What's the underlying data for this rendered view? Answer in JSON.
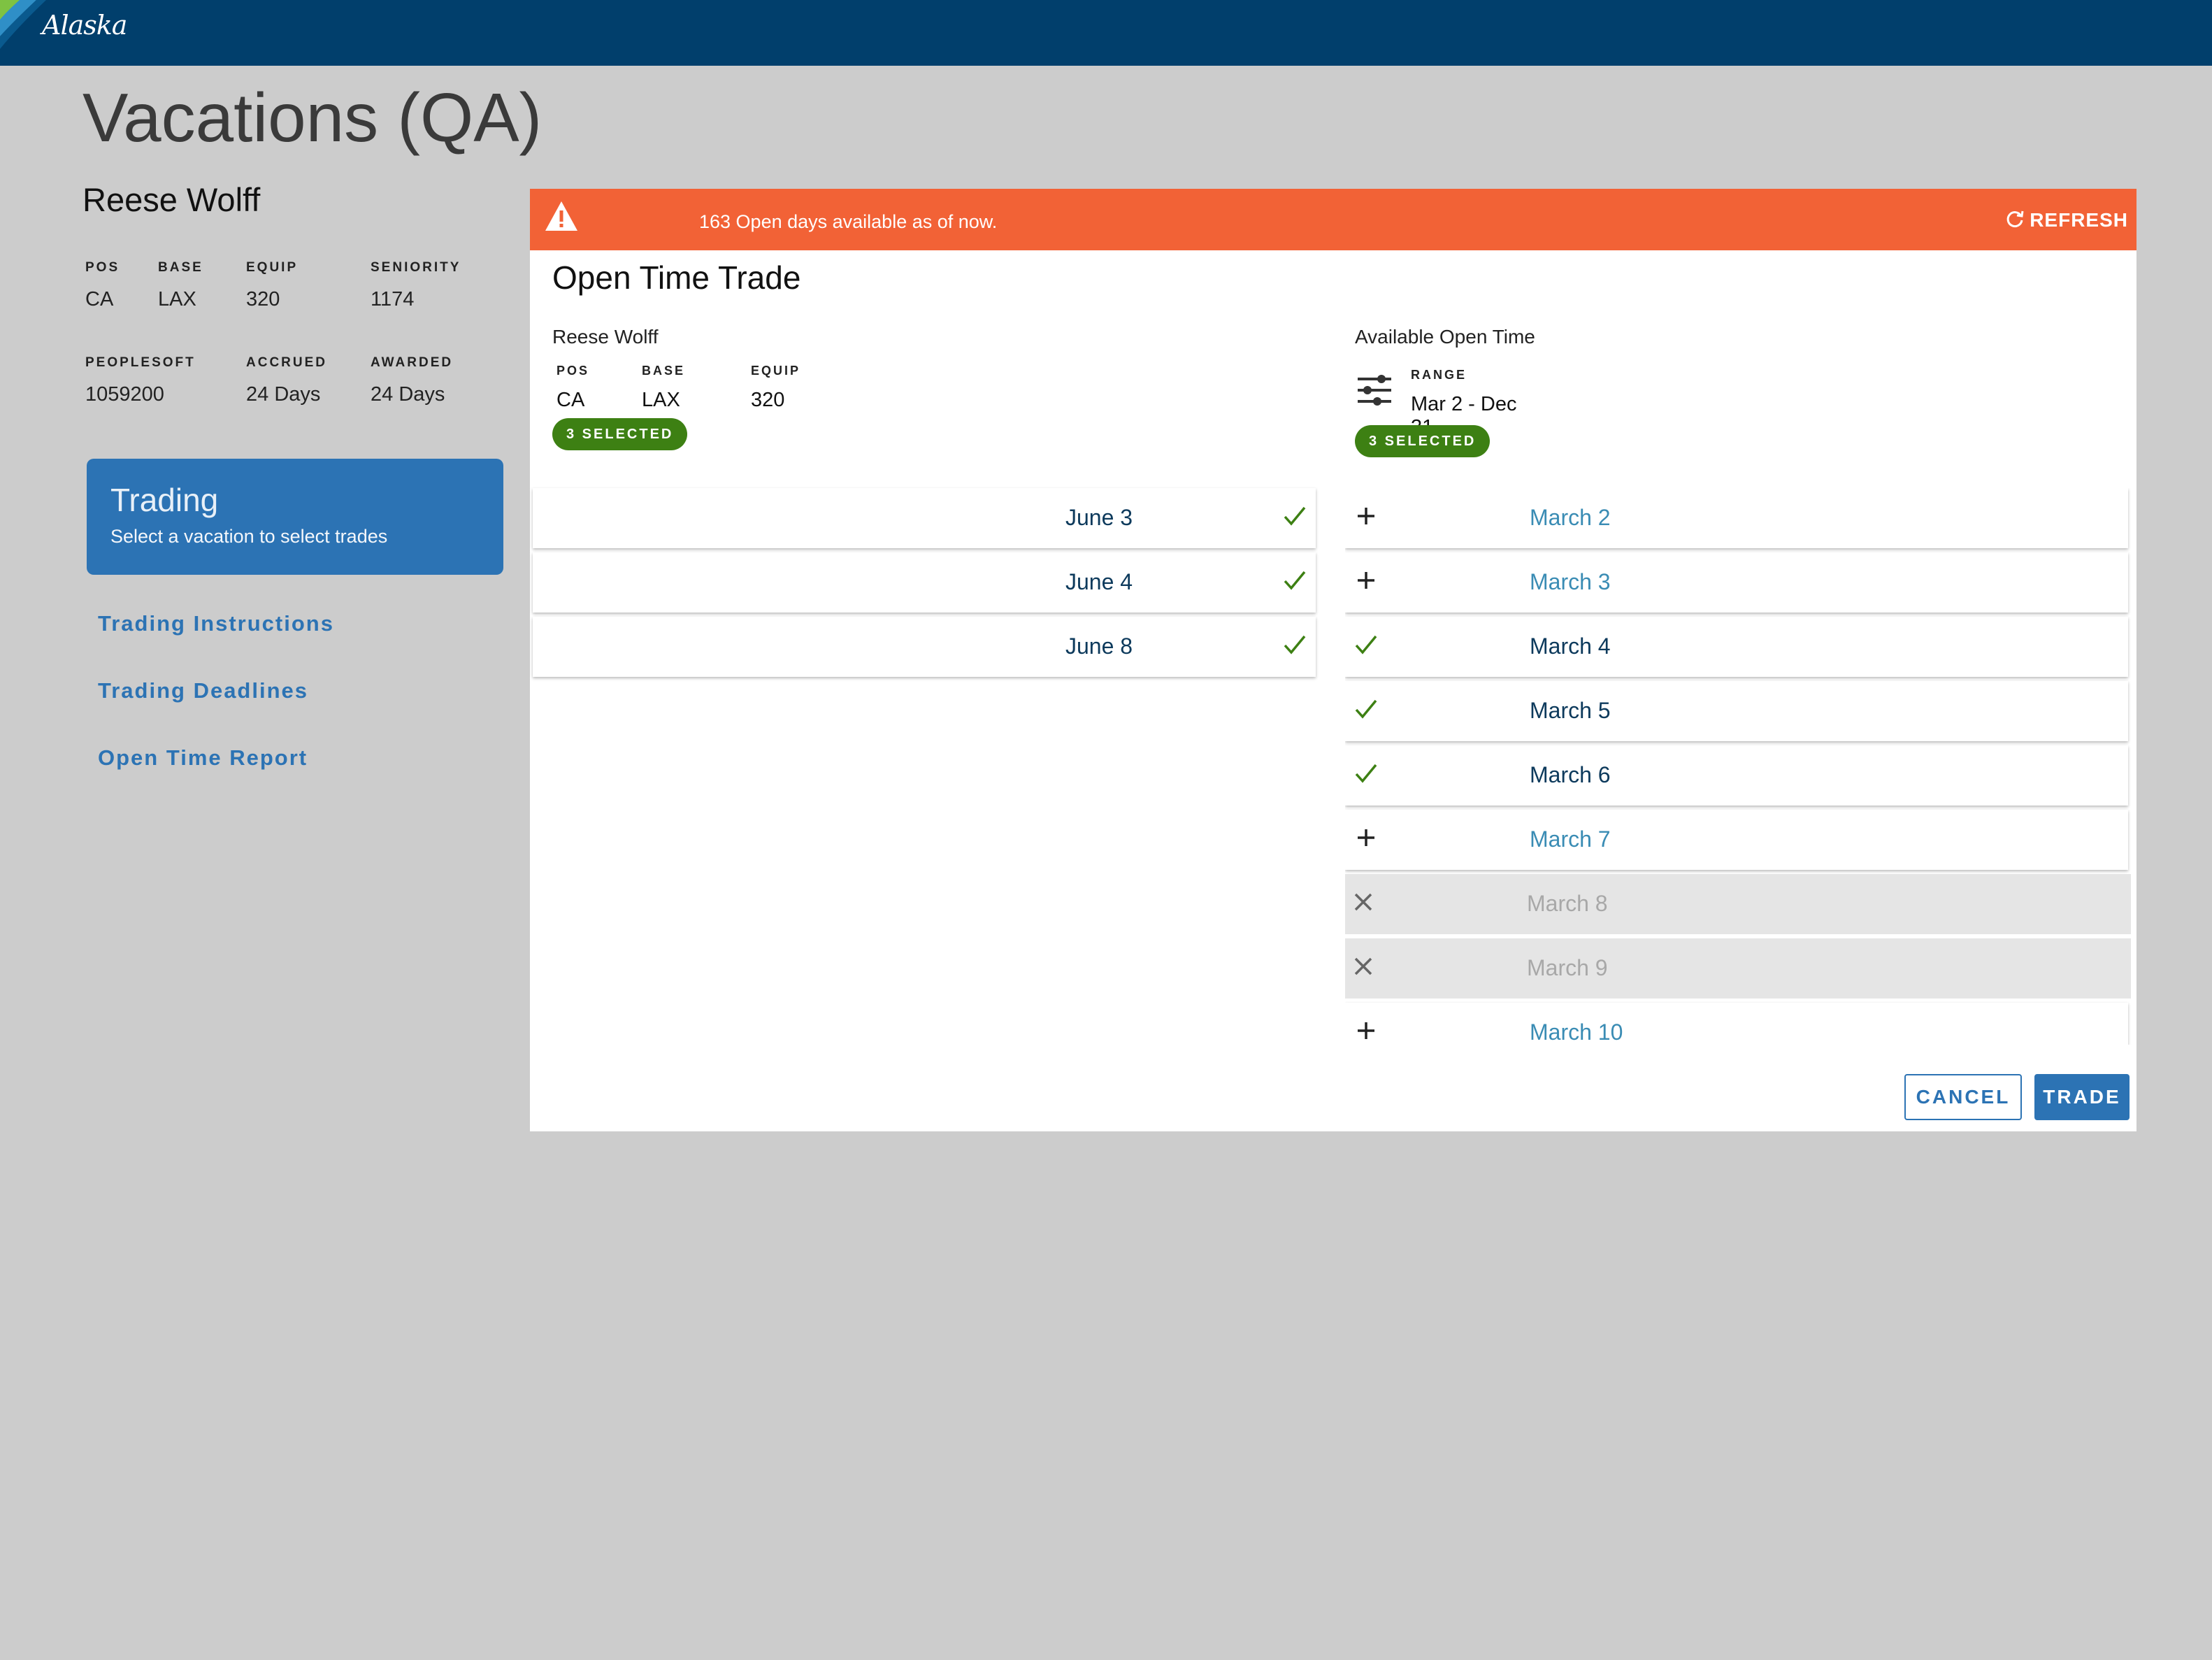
{
  "brand": {
    "logo_text": "Alaska",
    "nav_color": "#013f6c"
  },
  "page": {
    "title": "Vacations (QA)"
  },
  "agent": {
    "name": "Reese Wolff",
    "pos_label": "POS",
    "pos": "CA",
    "base_label": "BASE",
    "base": "LAX",
    "equip_label": "EQUIP",
    "equip": "320",
    "seniority_label": "SENIORITY",
    "seniority": "1174",
    "peoplesoft_label": "PEOPLESOFT",
    "peoplesoft": "1059200",
    "accrued_label": "ACCRUED",
    "accrued": "24 Days",
    "awarded_label": "AWARDED",
    "awarded": "24 Days"
  },
  "sidebar": {
    "card_title": "Trading",
    "card_subtitle": "Select a vacation to select trades",
    "links": [
      "Trading Instructions",
      "Trading Deadlines",
      "Open Time Report"
    ]
  },
  "alert": {
    "message": "163 Open days available as of now.",
    "refresh_label": "REFRESH",
    "color": "#f26236"
  },
  "trade": {
    "title": "Open Time Trade",
    "left": {
      "name": "Reese Wolff",
      "pos_label": "POS",
      "pos": "CA",
      "base_label": "BASE",
      "base": "LAX",
      "equip_label": "EQUIP",
      "equip": "320",
      "badge": "3 SELECTED",
      "days": [
        {
          "date": "June 3",
          "state": "selected"
        },
        {
          "date": "June 4",
          "state": "selected"
        },
        {
          "date": "June 8",
          "state": "selected"
        }
      ]
    },
    "right": {
      "name": "Available Open Time",
      "range_label": "RANGE",
      "range": "Mar 2 - Dec 31",
      "badge": "3 SELECTED",
      "days": [
        {
          "date": "March 2",
          "state": "available"
        },
        {
          "date": "March 3",
          "state": "available"
        },
        {
          "date": "March 4",
          "state": "selected"
        },
        {
          "date": "March 5",
          "state": "selected"
        },
        {
          "date": "March 6",
          "state": "selected"
        },
        {
          "date": "March 7",
          "state": "available"
        },
        {
          "date": "March 8",
          "state": "unavailable"
        },
        {
          "date": "March 9",
          "state": "unavailable"
        },
        {
          "date": "March 10",
          "state": "available"
        }
      ]
    },
    "cancel_label": "CANCEL",
    "trade_label": "TRADE"
  },
  "colors": {
    "primary": "#2c73b4",
    "success": "#3d8013",
    "check": "#3d8013"
  }
}
